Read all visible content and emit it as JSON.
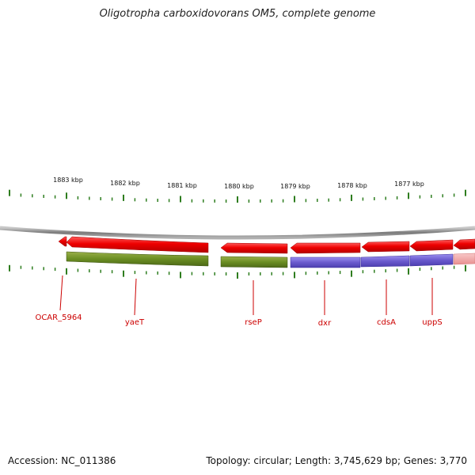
{
  "title": "Oligotropha carboxidovorans OM5, complete genome",
  "footer": {
    "accession": "Accession: NC_011386",
    "summary": "Topology: circular; Length: 3,745,629 bp; Genes: 3,770"
  },
  "ruler": {
    "tick_labels": [
      "1883 kbp",
      "1882 kbp",
      "1881 kbp",
      "1880 kbp",
      "1879 kbp",
      "1878 kbp",
      "1877 kbp"
    ]
  },
  "genes": [
    "OCAR_5964",
    "yaeT",
    "rseP",
    "dxr",
    "cdsA",
    "uppS"
  ],
  "colors": {
    "ticks": "#2e7d1f",
    "backbone": "#888888",
    "forward_feature": "#ff0000",
    "green_feature": "#6b8e23",
    "blue_feature": "#6a5acd",
    "pink_feature": "#f4a0a0",
    "label": "#cc0000"
  }
}
